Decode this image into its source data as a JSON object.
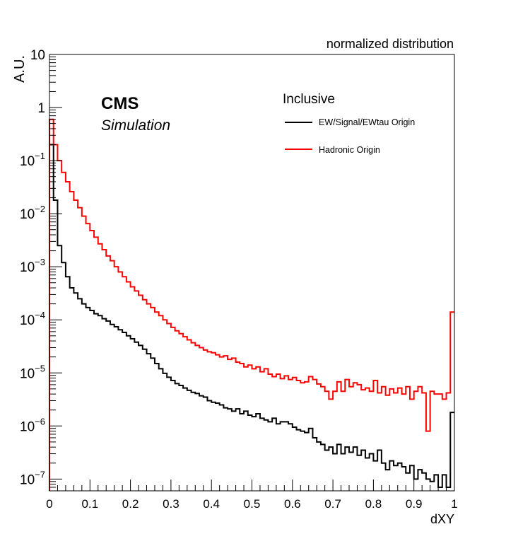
{
  "chart_data": {
    "type": "step-histogram",
    "title": "normalized distribution",
    "xlabel": "dXY",
    "ylabel": "A.U.",
    "xlim": [
      0,
      1
    ],
    "ylim": [
      6e-08,
      10
    ],
    "yscale": "log",
    "bin_width": 0.01,
    "x_ticks": [
      "0",
      "0.1",
      "0.2",
      "0.3",
      "0.4",
      "0.5",
      "0.6",
      "0.7",
      "0.8",
      "0.9",
      "1"
    ],
    "y_ticks": [
      {
        "value": 10,
        "mantissa": "10",
        "exponent": ""
      },
      {
        "value": 1,
        "mantissa": "1",
        "exponent": ""
      },
      {
        "value": 0.1,
        "mantissa": "10",
        "exponent": "−1"
      },
      {
        "value": 0.01,
        "mantissa": "10",
        "exponent": "−2"
      },
      {
        "value": 0.001,
        "mantissa": "10",
        "exponent": "−3"
      },
      {
        "value": 0.0001,
        "mantissa": "10",
        "exponent": "−4"
      },
      {
        "value": 1e-05,
        "mantissa": "10",
        "exponent": "−5"
      },
      {
        "value": 1e-06,
        "mantissa": "10",
        "exponent": "−6"
      },
      {
        "value": 1e-07,
        "mantissa": "10",
        "exponent": "−7"
      }
    ],
    "experiment_label": "CMS",
    "experiment_sublabel": "Simulation",
    "legend_header": "Inclusive",
    "legend_position": "top-right",
    "series": [
      {
        "name": "EW/Signal/EWtau Origin",
        "color": "#000000",
        "values": [
          0.2,
          0.018,
          0.0025,
          0.0012,
          0.00065,
          0.0004,
          0.00032,
          0.00025,
          0.0002,
          0.00017,
          0.00015,
          0.00013,
          0.00012,
          0.000105,
          9.5e-05,
          8.2e-05,
          7.4e-05,
          6.5e-05,
          5.8e-05,
          5e-05,
          4.4e-05,
          3.8e-05,
          3.3e-05,
          2.8e-05,
          2.3e-05,
          1.9e-05,
          1.5e-05,
          1.2e-05,
          9.8e-06,
          8.3e-06,
          7.2e-06,
          6.3e-06,
          5.8e-06,
          5.2e-06,
          4.7e-06,
          4.3e-06,
          4.1e-06,
          3.7e-06,
          3.5e-06,
          3e-06,
          2.8e-06,
          2.7e-06,
          2.5e-06,
          2.2e-06,
          2.1e-06,
          1.9e-06,
          2.1e-06,
          1.7e-06,
          1.9e-06,
          1.6e-06,
          1.5e-06,
          1.7e-06,
          1.4e-06,
          1.3e-06,
          1.2e-06,
          1.4e-06,
          1.1e-06,
          1.2e-06,
          1.2e-06,
          1.1e-06,
          9.5e-07,
          8.5e-07,
          8e-07,
          7.5e-07,
          9e-07,
          6e-07,
          5e-07,
          4.5e-07,
          3.5e-07,
          4e-07,
          3e-07,
          4.5e-07,
          3e-07,
          4e-07,
          3.2e-07,
          4e-07,
          2.8e-07,
          3.5e-07,
          2.5e-07,
          3e-07,
          2.2e-07,
          3.5e-07,
          2e-07,
          1.5e-07,
          2.2e-07,
          1.8e-07,
          2e-07,
          1.7e-07,
          1.3e-07,
          1.8e-07,
          1e-07,
          1.5e-07,
          1.3e-07,
          1e-07,
          9e-08,
          1.2e-07,
          7e-08,
          1.2e-07,
          7e-08,
          1.8e-06
        ]
      },
      {
        "name": "Hadronic Origin",
        "color": "#ff0000",
        "values": [
          0.6,
          0.2,
          0.1,
          0.06,
          0.04,
          0.026,
          0.018,
          0.013,
          0.009,
          0.0065,
          0.0048,
          0.0036,
          0.0027,
          0.0021,
          0.0016,
          0.0013,
          0.001,
          0.0008,
          0.00065,
          0.00052,
          0.00042,
          0.00035,
          0.00029,
          0.00024,
          0.0002,
          0.00017,
          0.00014,
          0.00012,
          0.0001,
          8.5e-05,
          7.2e-05,
          6.2e-05,
          5.5e-05,
          4.8e-05,
          4.2e-05,
          3.7e-05,
          3.3e-05,
          3e-05,
          2.7e-05,
          2.5e-05,
          2.4e-05,
          2.2e-05,
          2e-05,
          2.1e-05,
          1.8e-05,
          1.9e-05,
          1.6e-05,
          1.5e-05,
          1.3e-05,
          1.4e-05,
          1.2e-05,
          1.3e-05,
          1.05e-05,
          1.2e-05,
          9.5e-06,
          8.5e-06,
          9.5e-06,
          7.8e-06,
          8.8e-06,
          7.5e-06,
          8.2e-06,
          7.2e-06,
          6.5e-06,
          6.8e-06,
          8.5e-06,
          7.5e-06,
          6.2e-06,
          5.5e-06,
          4.5e-06,
          3.2e-06,
          4.5e-06,
          6.8e-06,
          4.5e-06,
          7.5e-06,
          5.5e-06,
          6.5e-06,
          6e-06,
          4.8e-06,
          5.2e-06,
          4.5e-06,
          7.2e-06,
          4.2e-06,
          5.5e-06,
          3.8e-06,
          5e-06,
          4.2e-06,
          5.2e-06,
          4e-06,
          5.5e-06,
          3.2e-06,
          4.5e-06,
          5.5e-06,
          4.2e-06,
          8e-07,
          4.5e-06,
          4e-06,
          4e-06,
          3.2e-06,
          4.2e-06,
          0.00014
        ]
      }
    ]
  }
}
